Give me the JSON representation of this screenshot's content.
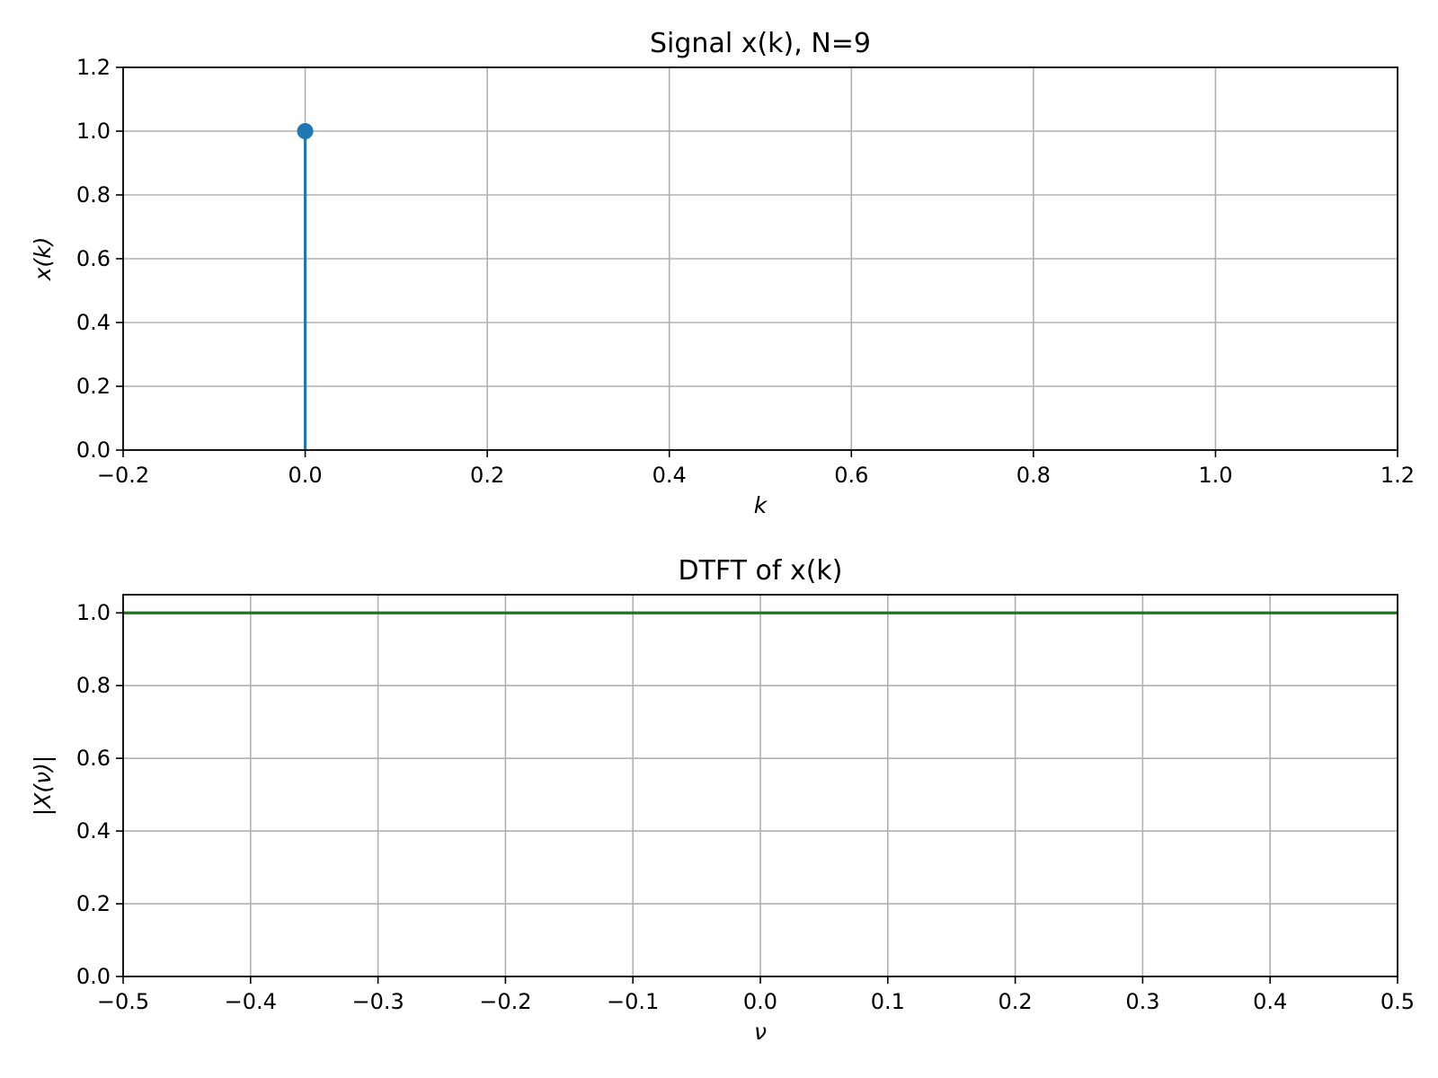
{
  "chart_data": [
    {
      "type": "stem",
      "title": "Signal x(k), N=9",
      "xlabel": "k",
      "ylabel": "x(k)",
      "xlim": [
        -0.2,
        1.2
      ],
      "ylim": [
        0.0,
        1.2
      ],
      "xticks": [
        "−0.2",
        "0.0",
        "0.2",
        "0.4",
        "0.6",
        "0.8",
        "1.0",
        "1.2"
      ],
      "yticks": [
        "0.0",
        "0.2",
        "0.4",
        "0.6",
        "0.8",
        "1.0",
        "1.2"
      ],
      "grid": true,
      "color": "#1f77b4",
      "series": [
        {
          "x": [
            0.0
          ],
          "y": [
            1.0
          ]
        }
      ]
    },
    {
      "type": "line",
      "title": "DTFT of x(k)",
      "xlabel": "ν",
      "ylabel": "|X(ν)|",
      "xlim": [
        -0.5,
        0.5
      ],
      "ylim": [
        0.0,
        1.05
      ],
      "xticks": [
        "−0.5",
        "−0.4",
        "−0.3",
        "−0.2",
        "−0.1",
        "0.0",
        "0.1",
        "0.2",
        "0.3",
        "0.4",
        "0.5"
      ],
      "yticks": [
        "0.0",
        "0.2",
        "0.4",
        "0.6",
        "0.8",
        "1.0"
      ],
      "grid": true,
      "color": "#1a7a1a",
      "series": [
        {
          "x": [
            -0.5,
            0.5
          ],
          "y": [
            1.0,
            1.0
          ]
        }
      ]
    }
  ]
}
